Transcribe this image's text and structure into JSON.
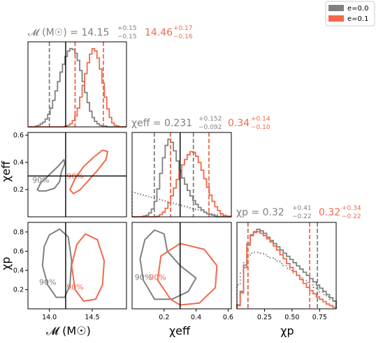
{
  "chart_data": {
    "type": "corner",
    "legend": {
      "placement": "top-right",
      "entries": [
        {
          "name": "e=0.0",
          "color": "#808080"
        },
        {
          "name": "e=0.1",
          "color": "#f2694b"
        }
      ]
    },
    "parameters": [
      {
        "key": "mc",
        "label": "𝓜 (M☉)",
        "range": [
          13.75,
          14.9
        ],
        "ticks": [
          "14.0",
          "14.5"
        ],
        "truth": 14.19,
        "title": {
          "grey_main": "𝓜 (M☉) = 14.15",
          "grey_plus": "+0.15",
          "grey_minus": "−0.15",
          "red_main": "14.46",
          "red_plus": "+0.17",
          "red_minus": "−0.16"
        }
      },
      {
        "key": "chi",
        "label": "χeff",
        "range": [
          0.0,
          0.62
        ],
        "ticks": [
          "0.2",
          "0.4",
          "0.6"
        ],
        "truth": 0.3,
        "title": {
          "grey_main": "χeff = 0.231",
          "grey_plus": "+0.152",
          "grey_minus": "−0.092",
          "red_main": "0.34",
          "red_plus": "+0.14",
          "red_minus": "−0.10"
        }
      },
      {
        "key": "chip",
        "label": "χp",
        "range": [
          0.0,
          0.9
        ],
        "ticks": [
          "0.25",
          "0.50",
          "0.75"
        ],
        "title": {
          "grey_main": "χp = 0.32",
          "grey_plus": "+0.41",
          "grey_minus": "−0.22",
          "red_main": "0.32",
          "red_plus": "+0.34",
          "red_minus": "−0.22"
        }
      }
    ],
    "y_axes": {
      "chi": {
        "ticks": [
          "0.2",
          "0.4",
          "0.6"
        ]
      },
      "chip": {
        "ticks": [
          "0.2",
          "0.4",
          "0.6",
          "0.8"
        ]
      }
    },
    "diagonal": {
      "mc": {
        "grey_quantiles": [
          14.0,
          14.15,
          14.3
        ],
        "red_quantiles": [
          14.3,
          14.46,
          14.63
        ],
        "grey_density": [
          0,
          0,
          0,
          0.01,
          0.02,
          0.04,
          0.06,
          0.1,
          0.16,
          0.24,
          0.34,
          0.46,
          0.58,
          0.7,
          0.8,
          0.9,
          0.97,
          1.0,
          0.99,
          0.94,
          0.85,
          0.72,
          0.58,
          0.44,
          0.31,
          0.2,
          0.12,
          0.07,
          0.04,
          0.02,
          0.01,
          0.01,
          0,
          0,
          0,
          0,
          0,
          0,
          0,
          0
        ],
        "red_density": [
          0,
          0,
          0,
          0,
          0,
          0,
          0,
          0,
          0,
          0,
          0,
          0,
          0,
          0,
          0,
          0.01,
          0.02,
          0.04,
          0.08,
          0.14,
          0.24,
          0.38,
          0.53,
          0.68,
          0.82,
          0.93,
          1.0,
          0.97,
          0.88,
          0.74,
          0.56,
          0.38,
          0.23,
          0.12,
          0.05,
          0.02,
          0.01,
          0,
          0,
          0
        ]
      },
      "chi": {
        "grey_quantiles": [
          0.139,
          0.231,
          0.383
        ],
        "red_quantiles": [
          0.24,
          0.34,
          0.48
        ],
        "grey_density": [
          0,
          0,
          0,
          0,
          0.01,
          0.02,
          0.05,
          0.1,
          0.2,
          0.36,
          0.56,
          0.76,
          0.92,
          1.0,
          0.96,
          0.85,
          0.72,
          0.6,
          0.5,
          0.42,
          0.34,
          0.27,
          0.21,
          0.16,
          0.12,
          0.09,
          0.06,
          0.04,
          0.03,
          0.02,
          0.01,
          0,
          0,
          0,
          0,
          0
        ],
        "red_density": [
          0,
          0,
          0,
          0,
          0,
          0,
          0,
          0,
          0,
          0.01,
          0.03,
          0.06,
          0.11,
          0.18,
          0.27,
          0.37,
          0.48,
          0.58,
          0.67,
          0.74,
          0.8,
          0.84,
          0.83,
          0.78,
          0.7,
          0.6,
          0.49,
          0.38,
          0.28,
          0.2,
          0.13,
          0.08,
          0.04,
          0.02,
          0.01,
          0
        ],
        "prior_density": [
          0.32,
          0.31,
          0.3,
          0.29,
          0.28,
          0.27,
          0.26,
          0.25,
          0.24,
          0.23,
          0.22,
          0.21,
          0.2,
          0.19,
          0.18,
          0.17,
          0.16,
          0.15,
          0.14,
          0.13,
          0.12,
          0.11,
          0.1,
          0.09,
          0.08,
          0.07,
          0.06,
          0.05,
          0.04,
          0.03,
          0.03,
          0.02,
          0.02,
          0.01,
          0.01,
          0.01
        ]
      },
      "chip": {
        "grey_quantiles": [
          0.1,
          0.32,
          0.73
        ],
        "red_quantiles": [
          0.1,
          0.32,
          0.66
        ],
        "grey_density": [
          0.05,
          0.22,
          0.55,
          0.82,
          0.93,
          0.97,
          1.0,
          0.98,
          0.95,
          0.9,
          0.86,
          0.82,
          0.78,
          0.74,
          0.7,
          0.66,
          0.62,
          0.58,
          0.54,
          0.5,
          0.46,
          0.42,
          0.38,
          0.34,
          0.3,
          0.26,
          0.22,
          0.18,
          0.14,
          0.1
        ],
        "red_density": [
          0.04,
          0.2,
          0.52,
          0.8,
          0.92,
          0.96,
          0.97,
          0.95,
          0.92,
          0.88,
          0.84,
          0.79,
          0.74,
          0.68,
          0.63,
          0.57,
          0.52,
          0.47,
          0.42,
          0.37,
          0.32,
          0.27,
          0.23,
          0.19,
          0.15,
          0.12,
          0.09,
          0.06,
          0.04,
          0.02
        ],
        "prior_density": [
          0.3,
          0.45,
          0.58,
          0.66,
          0.7,
          0.71,
          0.71,
          0.7,
          0.68,
          0.66,
          0.64,
          0.62,
          0.6,
          0.57,
          0.54,
          0.51,
          0.48,
          0.45,
          0.42,
          0.39,
          0.36,
          0.33,
          0.3,
          0.27,
          0.24,
          0.21,
          0.18,
          0.15,
          0.12,
          0.09
        ]
      }
    },
    "contours": [
      {
        "x": "mc",
        "y": "chi",
        "label": "90%",
        "grey": [
          [
            13.86,
            0.2
          ],
          [
            13.9,
            0.25
          ],
          [
            14.0,
            0.31
          ],
          [
            14.1,
            0.37
          ],
          [
            14.17,
            0.42
          ],
          [
            14.18,
            0.39
          ],
          [
            14.14,
            0.33
          ],
          [
            14.12,
            0.26
          ],
          [
            14.06,
            0.21
          ],
          [
            13.96,
            0.19
          ],
          [
            13.88,
            0.19
          ]
        ],
        "red": [
          [
            14.24,
            0.2
          ],
          [
            14.3,
            0.28
          ],
          [
            14.4,
            0.37
          ],
          [
            14.52,
            0.44
          ],
          [
            14.62,
            0.49
          ],
          [
            14.68,
            0.48
          ],
          [
            14.66,
            0.42
          ],
          [
            14.56,
            0.34
          ],
          [
            14.46,
            0.27
          ],
          [
            14.36,
            0.2
          ],
          [
            14.28,
            0.17
          ]
        ]
      },
      {
        "x": "mc",
        "y": "chip",
        "label": "90%",
        "grey": [
          [
            14.08,
            0.12
          ],
          [
            13.98,
            0.25
          ],
          [
            13.92,
            0.45
          ],
          [
            13.94,
            0.65
          ],
          [
            14.0,
            0.77
          ],
          [
            14.12,
            0.83
          ],
          [
            14.22,
            0.75
          ],
          [
            14.26,
            0.5
          ],
          [
            14.24,
            0.25
          ],
          [
            14.18,
            0.12
          ]
        ],
        "red": [
          [
            14.4,
            0.08
          ],
          [
            14.3,
            0.2
          ],
          [
            14.26,
            0.45
          ],
          [
            14.32,
            0.67
          ],
          [
            14.42,
            0.78
          ],
          [
            14.56,
            0.72
          ],
          [
            14.64,
            0.5
          ],
          [
            14.62,
            0.25
          ],
          [
            14.54,
            0.1
          ]
        ]
      },
      {
        "x": "chi",
        "y": "chip",
        "label": "90%",
        "grey": [
          [
            0.14,
            0.1
          ],
          [
            0.07,
            0.3
          ],
          [
            0.05,
            0.52
          ],
          [
            0.08,
            0.72
          ],
          [
            0.14,
            0.82
          ],
          [
            0.2,
            0.78
          ],
          [
            0.22,
            0.6
          ],
          [
            0.3,
            0.45
          ],
          [
            0.4,
            0.32
          ],
          [
            0.35,
            0.18
          ],
          [
            0.25,
            0.1
          ]
        ],
        "red": [
          [
            0.24,
            0.1
          ],
          [
            0.16,
            0.3
          ],
          [
            0.18,
            0.55
          ],
          [
            0.3,
            0.68
          ],
          [
            0.45,
            0.62
          ],
          [
            0.53,
            0.45
          ],
          [
            0.52,
            0.22
          ],
          [
            0.42,
            0.06
          ],
          [
            0.3,
            0.04
          ]
        ]
      }
    ]
  }
}
